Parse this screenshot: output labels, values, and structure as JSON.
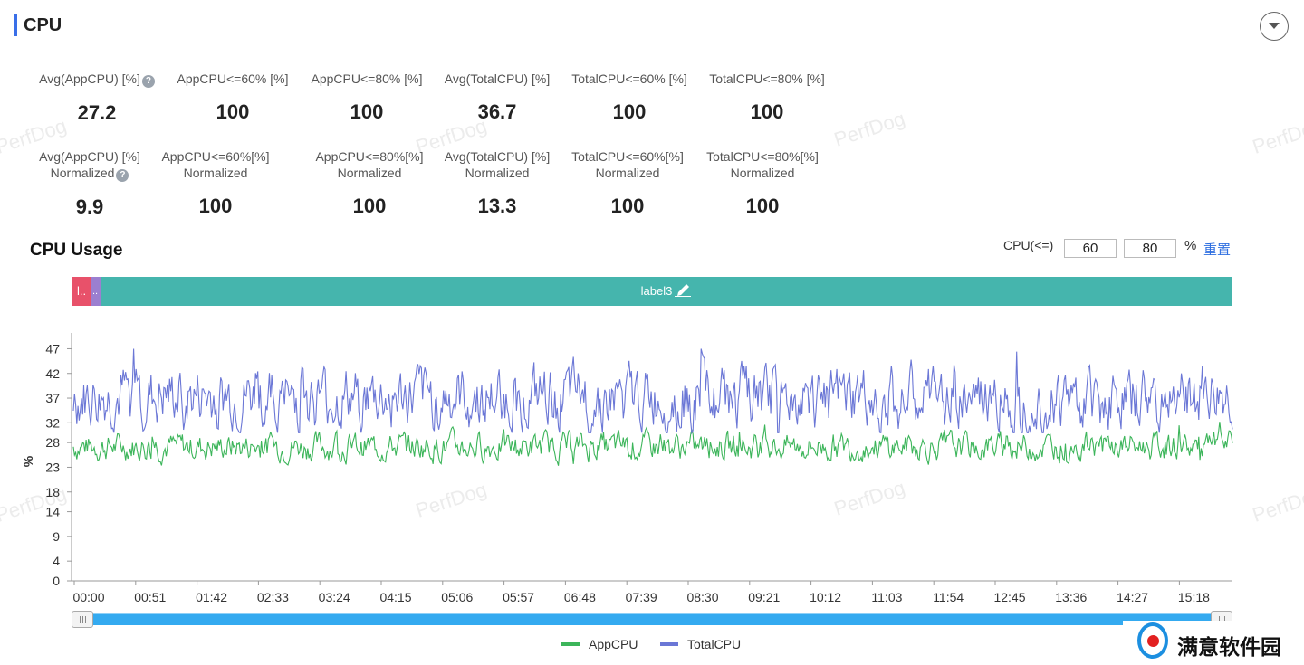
{
  "section_title": "CPU",
  "metrics_row1": [
    {
      "label": "Avg(AppCPU) [%]",
      "value": "27.2",
      "help": true
    },
    {
      "label": "AppCPU<=60% [%]",
      "value": "100"
    },
    {
      "label": "AppCPU<=80% [%]",
      "value": "100"
    },
    {
      "label": "Avg(TotalCPU) [%]",
      "value": "36.7"
    },
    {
      "label": "TotalCPU<=60% [%]",
      "value": "100"
    },
    {
      "label": "TotalCPU<=80% [%]",
      "value": "100"
    }
  ],
  "metrics_row2": [
    {
      "label1": "Avg(AppCPU) [%]",
      "label2": "Normalized",
      "value": "9.9",
      "help": true
    },
    {
      "label1": "AppCPU<=60%[%]",
      "label2": "Normalized",
      "value": "100"
    },
    {
      "label1": "AppCPU<=80%[%]",
      "label2": "Normalized",
      "value": "100"
    },
    {
      "label1": "Avg(TotalCPU) [%]",
      "label2": "Normalized",
      "value": "13.3"
    },
    {
      "label1": "TotalCPU<=60%[%]",
      "label2": "Normalized",
      "value": "100"
    },
    {
      "label1": "TotalCPU<=80%[%]",
      "label2": "Normalized",
      "value": "100"
    }
  ],
  "watermark_text": "PerfDog",
  "usage": {
    "title": "CPU Usage",
    "threshold_label": "CPU(<=)",
    "threshold1": "60",
    "threshold2": "80",
    "percent_sign": "%",
    "reset_label": "重置"
  },
  "labels": [
    {
      "text": "l..",
      "color": "#e8516a"
    },
    {
      "text": "..",
      "color": "#9b7fd0"
    },
    {
      "text": "label3",
      "color": "#45b5ad"
    }
  ],
  "legend": [
    {
      "name": "AppCPU",
      "color": "#3cb55a"
    },
    {
      "name": "TotalCPU",
      "color": "#6b77d6"
    }
  ],
  "logo_text": "满意软件园",
  "chart_data": {
    "type": "line",
    "ylabel": "%",
    "ylim": [
      0,
      48
    ],
    "yticks": [
      "0",
      "4",
      "9",
      "14",
      "18",
      "23",
      "28",
      "32",
      "37",
      "42",
      "47"
    ],
    "x_tick_labels": [
      "00:00",
      "00:51",
      "01:42",
      "02:33",
      "03:24",
      "04:15",
      "05:06",
      "05:57",
      "06:48",
      "07:39",
      "08:30",
      "09:21",
      "10:12",
      "11:03",
      "11:54",
      "12:45",
      "13:36",
      "14:27",
      "15:18"
    ],
    "x_range_seconds": [
      0,
      1000
    ],
    "samples": 1000,
    "series": [
      {
        "name": "AppCPU",
        "color": "#3cb55a",
        "mean": 27.2,
        "min": 23,
        "max": 33
      },
      {
        "name": "TotalCPU",
        "color": "#6b77d6",
        "mean": 36.7,
        "min": 30,
        "max": 47
      }
    ],
    "grid": false,
    "legend_position": "bottom-center"
  }
}
